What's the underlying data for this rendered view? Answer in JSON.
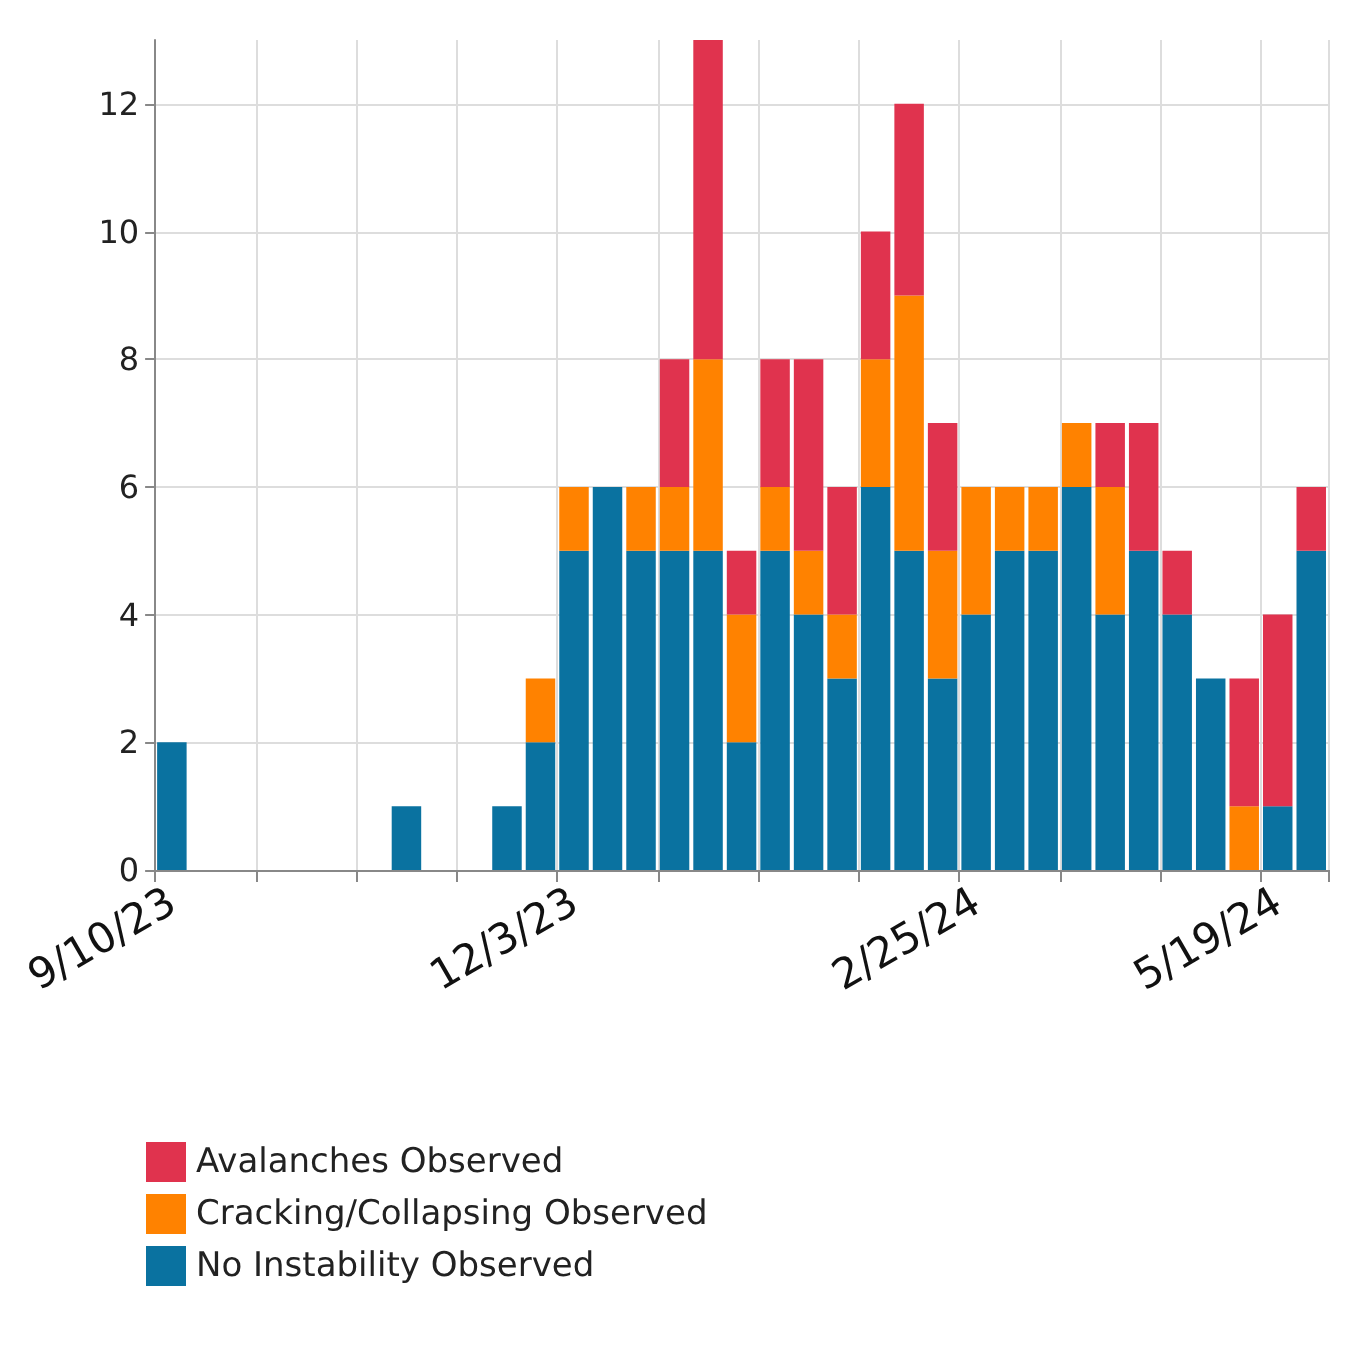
{
  "chart_data": {
    "type": "bar",
    "stacked": true,
    "categories": [
      "9/10/23",
      null,
      null,
      null,
      null,
      null,
      null,
      null,
      null,
      null,
      null,
      null,
      "12/3/23",
      null,
      null,
      null,
      null,
      null,
      null,
      null,
      null,
      null,
      null,
      null,
      "2/25/24",
      null,
      null,
      null,
      null,
      null,
      null,
      null,
      null,
      "5/19/24",
      null
    ],
    "series": [
      {
        "name": "No Instability Observed",
        "color": "#0a72a0",
        "values": [
          2,
          0,
          0,
          0,
          0,
          0,
          0,
          1,
          0,
          0,
          1,
          2,
          5,
          6,
          5,
          5,
          5,
          2,
          5,
          4,
          3,
          6,
          5,
          3,
          4,
          5,
          5,
          6,
          4,
          5,
          4,
          3,
          0,
          1,
          5
        ]
      },
      {
        "name": "Cracking/Collapsing Observed",
        "color": "#ff8200",
        "values": [
          0,
          0,
          0,
          0,
          0,
          0,
          0,
          0,
          0,
          0,
          0,
          1,
          1,
          0,
          1,
          1,
          3,
          2,
          1,
          1,
          1,
          2,
          4,
          2,
          2,
          1,
          1,
          1,
          2,
          0,
          0,
          0,
          1,
          0,
          0
        ]
      },
      {
        "name": "Avalanches Observed",
        "color": "#e0334e",
        "values": [
          0,
          0,
          0,
          0,
          0,
          0,
          0,
          0,
          0,
          0,
          0,
          0,
          0,
          0,
          0,
          2,
          5,
          1,
          2,
          3,
          2,
          2,
          3,
          2,
          0,
          0,
          0,
          0,
          1,
          2,
          1,
          0,
          2,
          3,
          1
        ]
      }
    ],
    "ylim": [
      0,
      13
    ],
    "yticks": [
      0,
      2,
      4,
      6,
      8,
      10,
      12
    ],
    "grid": true,
    "legend": "bottom left"
  }
}
